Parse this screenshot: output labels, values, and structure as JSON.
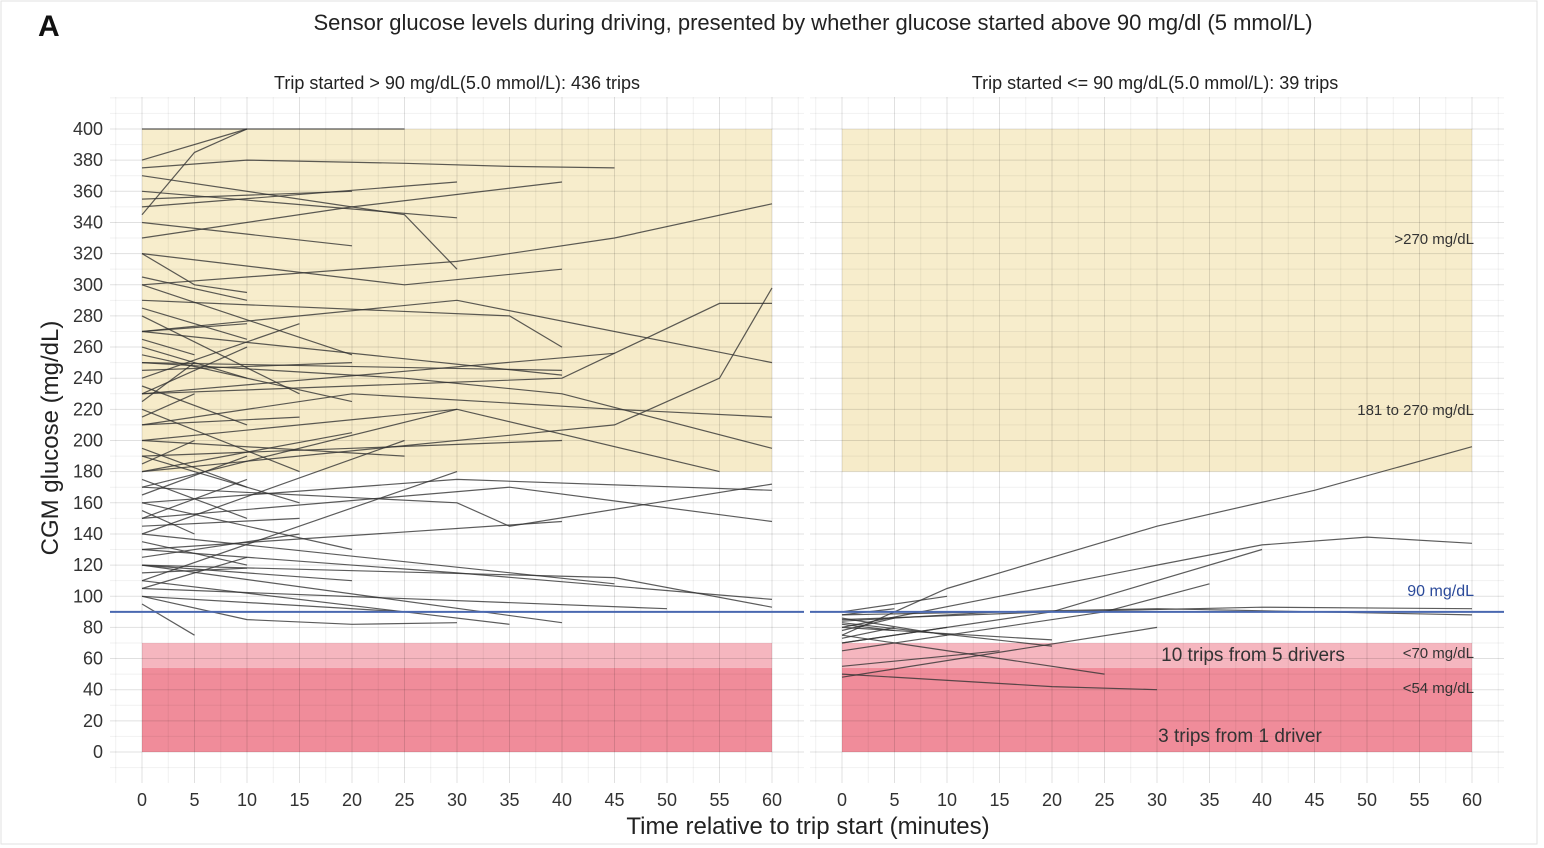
{
  "chart_data": {
    "type": "line",
    "panel_letter": "A",
    "title": "Sensor glucose levels during driving, presented by whether glucose started above 90 mg/dl (5 mmol/L)",
    "xlabel": "Time relative to trip start (minutes)",
    "ylabel": "CGM glucose (mg/dL)",
    "xlim": [
      0,
      60
    ],
    "ylim": [
      0,
      400
    ],
    "x_ticks": [
      0,
      5,
      10,
      15,
      20,
      25,
      30,
      35,
      40,
      45,
      50,
      55,
      60
    ],
    "y_ticks": [
      0,
      20,
      40,
      60,
      80,
      100,
      120,
      140,
      160,
      180,
      200,
      220,
      240,
      260,
      280,
      300,
      320,
      340,
      360,
      380,
      400
    ],
    "grid": true,
    "threshold": {
      "y": 90,
      "label": "90 mg/dL",
      "color": "#4a68b0"
    },
    "zones": [
      {
        "name": ">270 mg/dL",
        "ymin": 270,
        "ymax": 400,
        "color": "#f7edcc"
      },
      {
        "name": "181 to 270 mg/dL",
        "ymin": 180,
        "ymax": 270,
        "color": "#f6ebc9"
      },
      {
        "name": "<70 mg/dL",
        "ymin": 54,
        "ymax": 70,
        "color": "#f5b6bf"
      },
      {
        "name": "<54 mg/dL",
        "ymin": 0,
        "ymax": 54,
        "color": "#f08c9a"
      }
    ],
    "facets": [
      {
        "title": "Trip started > 90 mg/dL(5.0 mmol/L): 436 trips",
        "annotations": [],
        "series": [
          {
            "x": [
              0,
              25
            ],
            "y": [
              400,
              400
            ]
          },
          {
            "x": [
              0,
              10
            ],
            "y": [
              380,
              400
            ]
          },
          {
            "x": [
              0,
              5,
              10
            ],
            "y": [
              345,
              385,
              400
            ]
          },
          {
            "x": [
              0,
              10,
              25,
              35,
              45
            ],
            "y": [
              375,
              380,
              378,
              376,
              375
            ]
          },
          {
            "x": [
              0,
              20
            ],
            "y": [
              355,
              360
            ]
          },
          {
            "x": [
              0,
              30
            ],
            "y": [
              350,
              366
            ]
          },
          {
            "x": [
              0,
              20,
              40
            ],
            "y": [
              330,
              350,
              366
            ]
          },
          {
            "x": [
              0,
              30
            ],
            "y": [
              360,
              343
            ]
          },
          {
            "x": [
              0,
              20
            ],
            "y": [
              340,
              325
            ]
          },
          {
            "x": [
              0,
              25,
              30
            ],
            "y": [
              370,
              345,
              310
            ]
          },
          {
            "x": [
              0,
              30,
              45,
              60
            ],
            "y": [
              300,
              315,
              330,
              352
            ]
          },
          {
            "x": [
              0,
              25,
              40
            ],
            "y": [
              320,
              300,
              310
            ]
          },
          {
            "x": [
              0,
              35,
              40
            ],
            "y": [
              290,
              280,
              260
            ]
          },
          {
            "x": [
              0,
              30,
              60
            ],
            "y": [
              270,
              290,
              250
            ]
          },
          {
            "x": [
              0,
              40,
              55,
              60
            ],
            "y": [
              230,
              240,
              288,
              288
            ]
          },
          {
            "x": [
              0,
              45,
              55,
              60
            ],
            "y": [
              180,
              210,
              240,
              298
            ]
          },
          {
            "x": [
              0,
              20,
              45,
              60
            ],
            "y": [
              210,
              230,
              220,
              215
            ]
          },
          {
            "x": [
              0,
              25,
              40,
              60
            ],
            "y": [
              250,
              240,
              230,
              195
            ]
          },
          {
            "x": [
              0,
              30,
              55
            ],
            "y": [
              200,
              220,
              180
            ]
          },
          {
            "x": [
              0,
              45
            ],
            "y": [
              230,
              256
            ]
          },
          {
            "x": [
              0,
              40
            ],
            "y": [
              250,
              245
            ]
          },
          {
            "x": [
              0,
              40
            ],
            "y": [
              270,
              242
            ]
          },
          {
            "x": [
              0,
              40
            ],
            "y": [
              190,
              200
            ]
          },
          {
            "x": [
              0,
              30,
              60
            ],
            "y": [
              160,
              175,
              168
            ]
          },
          {
            "x": [
              0,
              35,
              60
            ],
            "y": [
              150,
              170,
              148
            ]
          },
          {
            "x": [
              0,
              30,
              35,
              60
            ],
            "y": [
              170,
              160,
              145,
              172
            ]
          },
          {
            "x": [
              0,
              30,
              60
            ],
            "y": [
              130,
              115,
              98
            ]
          },
          {
            "x": [
              0,
              45,
              60
            ],
            "y": [
              120,
              112,
              93
            ]
          },
          {
            "x": [
              0,
              45
            ],
            "y": [
              140,
              108
            ]
          },
          {
            "x": [
              0,
              40
            ],
            "y": [
              120,
              83
            ]
          },
          {
            "x": [
              0,
              35
            ],
            "y": [
              110,
              82
            ]
          },
          {
            "x": [
              0,
              10,
              20,
              30
            ],
            "y": [
              100,
              85,
              82,
              83
            ]
          },
          {
            "x": [
              0,
              5
            ],
            "y": [
              95,
              75
            ]
          },
          {
            "x": [
              0,
              25
            ],
            "y": [
              100,
              90
            ]
          },
          {
            "x": [
              0,
              50
            ],
            "y": [
              105,
              92
            ]
          },
          {
            "x": [
              0,
              40
            ],
            "y": [
              130,
              148
            ]
          },
          {
            "x": [
              0,
              30
            ],
            "y": [
              110,
              180
            ]
          },
          {
            "x": [
              0,
              25
            ],
            "y": [
              140,
              200
            ]
          },
          {
            "x": [
              0,
              30
            ],
            "y": [
              170,
              220
            ]
          },
          {
            "x": [
              0,
              20
            ],
            "y": [
              120,
              110
            ]
          },
          {
            "x": [
              0,
              15
            ],
            "y": [
              280,
              230
            ]
          },
          {
            "x": [
              0,
              20
            ],
            "y": [
              300,
              255
            ]
          },
          {
            "x": [
              0,
              15
            ],
            "y": [
              190,
              160
            ]
          },
          {
            "x": [
              0,
              10
            ],
            "y": [
              230,
              260
            ]
          },
          {
            "x": [
              0,
              15
            ],
            "y": [
              220,
              180
            ]
          },
          {
            "x": [
              0,
              10
            ],
            "y": [
              150,
              175
            ]
          },
          {
            "x": [
              0,
              20
            ],
            "y": [
              160,
              130
            ]
          },
          {
            "x": [
              0,
              10
            ],
            "y": [
              260,
              240
            ]
          },
          {
            "x": [
              0,
              15
            ],
            "y": [
              240,
              275
            ]
          },
          {
            "x": [
              0,
              25
            ],
            "y": [
              200,
              190
            ]
          },
          {
            "x": [
              0,
              20
            ],
            "y": [
              180,
              205
            ]
          },
          {
            "x": [
              0,
              10
            ],
            "y": [
              135,
              120
            ]
          },
          {
            "x": [
              0,
              15
            ],
            "y": [
              125,
              140
            ]
          },
          {
            "x": [
              0,
              10
            ],
            "y": [
              115,
              118
            ]
          },
          {
            "x": [
              0,
              10
            ],
            "y": [
              270,
              275
            ]
          },
          {
            "x": [
              0,
              15
            ],
            "y": [
              210,
              215
            ]
          },
          {
            "x": [
              0,
              10
            ],
            "y": [
              195,
              170
            ]
          },
          {
            "x": [
              0,
              20
            ],
            "y": [
              245,
              250
            ]
          },
          {
            "x": [
              0,
              10
            ],
            "y": [
              305,
              290
            ]
          },
          {
            "x": [
              0,
              5,
              10
            ],
            "y": [
              320,
              300,
              295
            ]
          },
          {
            "x": [
              0,
              10
            ],
            "y": [
              165,
              190
            ]
          },
          {
            "x": [
              0,
              15
            ],
            "y": [
              145,
              150
            ]
          },
          {
            "x": [
              0,
              10
            ],
            "y": [
              175,
              150
            ]
          },
          {
            "x": [
              0,
              20
            ],
            "y": [
              255,
              225
            ]
          },
          {
            "x": [
              0,
              10
            ],
            "y": [
              285,
              265
            ]
          },
          {
            "x": [
              0,
              10
            ],
            "y": [
              105,
              125
            ]
          },
          {
            "x": [
              0,
              5
            ],
            "y": [
              225,
              250
            ]
          },
          {
            "x": [
              0,
              5
            ],
            "y": [
              185,
              200
            ]
          },
          {
            "x": [
              0,
              5
            ],
            "y": [
              155,
              140
            ]
          },
          {
            "x": [
              0,
              5
            ],
            "y": [
              265,
              255
            ]
          },
          {
            "x": [
              0,
              5
            ],
            "y": [
              215,
              230
            ]
          },
          {
            "x": [
              0,
              10
            ],
            "y": [
              235,
              210
            ]
          }
        ]
      },
      {
        "title": "Trip started <= 90 mg/dL(5.0 mmol/L): 39 trips",
        "annotations": [
          {
            "text": "10 trips from 5 drivers"
          },
          {
            "text": "3 trips from 1 driver"
          }
        ],
        "series": [
          {
            "x": [
              0,
              10,
              30,
              45,
              60
            ],
            "y": [
              75,
              105,
              145,
              168,
              196
            ]
          },
          {
            "x": [
              0,
              15,
              30,
              40,
              50,
              60
            ],
            "y": [
              80,
              100,
              120,
              133,
              138,
              134
            ]
          },
          {
            "x": [
              0,
              20,
              40
            ],
            "y": [
              70,
              90,
              130
            ]
          },
          {
            "x": [
              0,
              25,
              35
            ],
            "y": [
              65,
              90,
              108
            ]
          },
          {
            "x": [
              0,
              20,
              40,
              60
            ],
            "y": [
              85,
              90,
              93,
              92
            ]
          },
          {
            "x": [
              0,
              30,
              60
            ],
            "y": [
              88,
              92,
              88
            ]
          },
          {
            "x": [
              0,
              15,
              25
            ],
            "y": [
              75,
              60,
              50
            ]
          },
          {
            "x": [
              0,
              20,
              30
            ],
            "y": [
              50,
              42,
              40
            ]
          },
          {
            "x": [
              0,
              30
            ],
            "y": [
              48,
              80
            ]
          },
          {
            "x": [
              0,
              15
            ],
            "y": [
              55,
              65
            ]
          },
          {
            "x": [
              0,
              20
            ],
            "y": [
              80,
              72
            ]
          },
          {
            "x": [
              0,
              10
            ],
            "y": [
              90,
              100
            ]
          },
          {
            "x": [
              0,
              10
            ],
            "y": [
              70,
              80
            ]
          },
          {
            "x": [
              0,
              5
            ],
            "y": [
              82,
              78
            ]
          },
          {
            "x": [
              0,
              5
            ],
            "y": [
              88,
              92
            ]
          },
          {
            "x": [
              0,
              10
            ],
            "y": [
              86,
              75
            ]
          },
          {
            "x": [
              0,
              5
            ],
            "y": [
              78,
              86
            ]
          },
          {
            "x": [
              0,
              15
            ],
            "y": [
              84,
              90
            ]
          },
          {
            "x": [
              0,
              5
            ],
            "y": [
              73,
              80
            ]
          },
          {
            "x": [
              0,
              20
            ],
            "y": [
              83,
              68
            ]
          }
        ]
      }
    ]
  }
}
